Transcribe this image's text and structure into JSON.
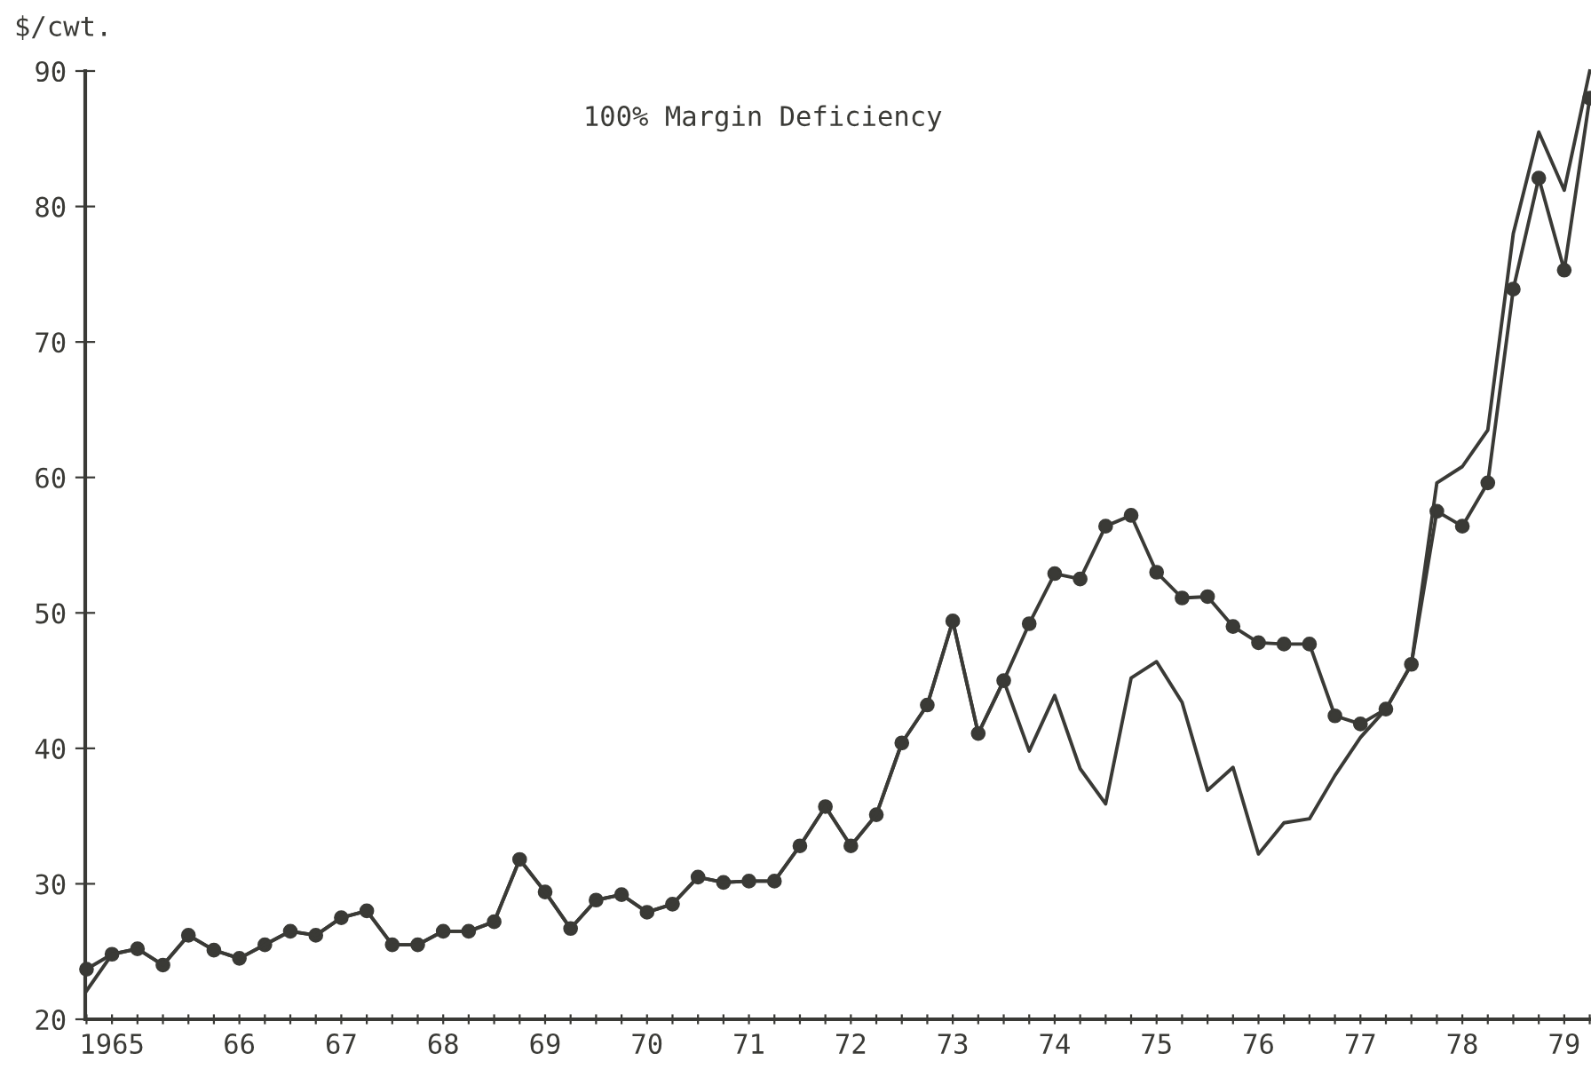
{
  "chart_data": {
    "type": "line",
    "title": "100% Margin Deficiency",
    "ylabel": "$/cwt.",
    "categories": [
      null,
      "1965",
      null,
      null,
      null,
      null,
      "66",
      null,
      null,
      null,
      "67",
      null,
      null,
      null,
      "68",
      null,
      null,
      null,
      "69",
      null,
      null,
      null,
      "70",
      null,
      null,
      null,
      "71",
      null,
      null,
      null,
      "72",
      null,
      null,
      null,
      "73",
      null,
      null,
      null,
      "74",
      null,
      null,
      null,
      "75",
      null,
      null,
      null,
      "76",
      null,
      null,
      null,
      "77",
      null,
      null,
      null,
      "78",
      null,
      null,
      null,
      "79",
      null
    ],
    "series": [
      {
        "color": "#3a3a36",
        "marker": "circle",
        "values": [
          23.7,
          24.8,
          25.2,
          24.0,
          26.2,
          25.1,
          24.5,
          25.5,
          26.5,
          26.2,
          27.5,
          28.0,
          25.5,
          25.5,
          26.5,
          26.5,
          27.2,
          31.8,
          29.4,
          26.7,
          28.8,
          29.2,
          27.9,
          28.5,
          30.5,
          30.1,
          30.2,
          30.2,
          32.8,
          35.7,
          32.8,
          35.1,
          40.4,
          43.2,
          49.4,
          41.1,
          45.0,
          49.2,
          52.9,
          52.5,
          56.4,
          57.2,
          53.0,
          51.1,
          51.2,
          49.0,
          47.8,
          47.7,
          47.7,
          42.4,
          41.8,
          42.9,
          46.2,
          57.5,
          56.4,
          59.6,
          73.9,
          82.1,
          75.3,
          88.0
        ]
      },
      {
        "color": "#3a3a36",
        "marker": "none",
        "values": [
          22.1,
          24.8,
          25.2,
          24.0,
          26.2,
          25.1,
          24.5,
          25.5,
          26.5,
          26.2,
          27.5,
          28.0,
          25.5,
          25.5,
          26.5,
          26.5,
          27.2,
          31.8,
          29.4,
          26.7,
          28.8,
          29.2,
          27.9,
          28.5,
          30.5,
          30.1,
          30.2,
          30.2,
          32.8,
          35.7,
          32.8,
          35.1,
          40.4,
          43.2,
          49.4,
          41.1,
          45.0,
          39.8,
          43.9,
          38.5,
          35.9,
          45.2,
          46.4,
          43.4,
          36.9,
          38.6,
          32.2,
          34.5,
          34.8,
          38.0,
          40.8,
          42.9,
          46.2,
          59.6,
          60.8,
          63.5,
          78.0,
          85.5,
          81.2,
          90.0
        ]
      }
    ],
    "ylim": [
      20,
      90
    ],
    "yticks": [
      20,
      30,
      40,
      50,
      60,
      70,
      80,
      90
    ],
    "grid": false,
    "legend": false
  }
}
